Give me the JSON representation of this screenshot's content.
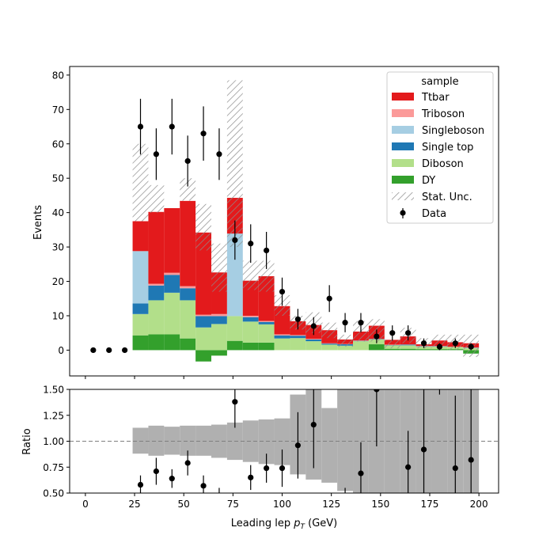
{
  "chart_data": [
    {
      "type": "bar",
      "stacked": true,
      "bin_width": 8,
      "ylabel": "Events",
      "xlim": [
        -8,
        210
      ],
      "ylim": [
        -7.5,
        82.5
      ],
      "yticks": [
        0,
        10,
        20,
        30,
        40,
        50,
        60,
        70,
        80
      ],
      "xticks": [
        0,
        25,
        50,
        75,
        100,
        125,
        150,
        175,
        200
      ],
      "x": [
        28,
        36,
        44,
        52,
        60,
        68,
        76,
        84,
        92,
        100,
        108,
        116,
        124,
        132,
        140,
        148,
        156,
        164,
        172,
        180,
        188,
        196
      ],
      "series": [
        {
          "name": "DY",
          "color": "#33a02c",
          "values": [
            4.3,
            4.6,
            4.6,
            3.4,
            -3.3,
            -1.6,
            2.7,
            2.2,
            2.2,
            0,
            0,
            0,
            0,
            0,
            0,
            1.7,
            0.4,
            0.4,
            0.3,
            0.3,
            0.3,
            -1.0
          ]
        },
        {
          "name": "Diboson",
          "color": "#b2df8a",
          "values": [
            6.2,
            9.9,
            12.1,
            11.1,
            6.6,
            7.6,
            7.2,
            6.1,
            5.3,
            3.4,
            3.5,
            2.6,
            1.6,
            1.3,
            2.6,
            1.4,
            1.0,
            1.0,
            0.7,
            0.7,
            0.6,
            0.6
          ]
        },
        {
          "name": "Single top",
          "color": "#1f78b4",
          "values": [
            3.1,
            4.3,
            5.2,
            3.5,
            3.3,
            2.3,
            0,
            1.3,
            0.7,
            0.9,
            0.7,
            0.5,
            0.3,
            0.4,
            0.1,
            0.1,
            0.1,
            0.2,
            0.1,
            0.1,
            0,
            0.1
          ]
        },
        {
          "name": "Singleboson",
          "color": "#a6cee3",
          "values": [
            15.2,
            0,
            0,
            0,
            0,
            0,
            24.0,
            0,
            0,
            0,
            0,
            0,
            0,
            0,
            0,
            0,
            0,
            0,
            0,
            0,
            0,
            0
          ]
        },
        {
          "name": "Triboson",
          "color": "#fb9a99",
          "values": [
            0,
            0.5,
            0.6,
            0.6,
            0.4,
            0.6,
            0,
            0.4,
            0.3,
            0.3,
            0.2,
            0.2,
            0.1,
            0.1,
            0.1,
            0.1,
            0.1,
            0.1,
            0.1,
            0.1,
            0.1,
            0.1
          ]
        },
        {
          "name": "Ttbar",
          "color": "#e31a1c",
          "values": [
            8.7,
            20.9,
            18.8,
            24.8,
            23.9,
            12.1,
            10.4,
            10.2,
            13.0,
            8.2,
            4.0,
            4.0,
            3.8,
            1.3,
            2.6,
            3.8,
            1.4,
            2.3,
            0.5,
            1.6,
            1.3,
            1.2
          ]
        }
      ],
      "stat_unc": {
        "name": "Stat. Unc.",
        "low": [
          37.5,
          40.0,
          48.0,
          43.5,
          29.0,
          17.0,
          30.0,
          17.5,
          17.0,
          10.0,
          6.0,
          5.0,
          3.5,
          1.0,
          2.5,
          2.5,
          0.5,
          2.0,
          0.5,
          1.0,
          0.0,
          -2.0
        ],
        "high": [
          60.0,
          48.0,
          48.0,
          50.0,
          42.5,
          31.0,
          78.5,
          26.0,
          26.0,
          16.0,
          10.0,
          11.0,
          8.0,
          4.5,
          8.5,
          9.0,
          3.0,
          6.5,
          3.5,
          4.5,
          4.5,
          4.5
        ]
      },
      "data": {
        "name": "Data",
        "x": [
          4,
          12,
          20,
          28,
          36,
          44,
          52,
          60,
          68,
          76,
          84,
          92,
          100,
          108,
          116,
          124,
          132,
          140,
          148,
          156,
          164,
          172,
          180,
          188,
          196
        ],
        "y": [
          0,
          0,
          0,
          65,
          57,
          65,
          55,
          63,
          57,
          32,
          31,
          29,
          17,
          9,
          7,
          15,
          8,
          8,
          4,
          5,
          5,
          2,
          1,
          2,
          1
        ],
        "err": [
          0,
          0,
          0,
          8.1,
          7.5,
          8.1,
          7.4,
          7.9,
          7.5,
          5.7,
          5.6,
          5.4,
          4.1,
          3.0,
          2.6,
          3.9,
          2.8,
          2.8,
          2.0,
          2.2,
          2.2,
          1.4,
          1.0,
          1.4,
          1.0
        ]
      },
      "legend": {
        "title": "sample",
        "placement": "top-right",
        "entries": [
          "Ttbar",
          "Triboson",
          "Singleboson",
          "Single top",
          "Diboson",
          "DY",
          "Stat. Unc.",
          "Data"
        ]
      }
    },
    {
      "type": "scatter",
      "xlabel_pre": "Leading lep ",
      "xlabel_var": "p",
      "xlabel_sub": "T",
      "xlabel_post": " (GeV)",
      "ylabel": "Ratio",
      "xlim": [
        -8,
        210
      ],
      "ylim": [
        0.5,
        1.5
      ],
      "yticks": [
        "0.50",
        "0.75",
        "1.00",
        "1.25",
        "1.50"
      ],
      "ytick_values": [
        0.5,
        0.75,
        1.0,
        1.25,
        1.5
      ],
      "xticks": [
        "0",
        "25",
        "50",
        "75",
        "100",
        "125",
        "150",
        "175",
        "200"
      ],
      "xtick_values": [
        0,
        25,
        50,
        75,
        100,
        125,
        150,
        175,
        200
      ],
      "reference_line": 1.0,
      "band": {
        "bin_edges": [
          24,
          32,
          40,
          48,
          56,
          64,
          72,
          80,
          88,
          96,
          104,
          112,
          120,
          128,
          136,
          144,
          152,
          160,
          168,
          176,
          184,
          192,
          200
        ],
        "low": [
          0.88,
          0.86,
          0.87,
          0.86,
          0.86,
          0.84,
          0.82,
          0.8,
          0.78,
          0.77,
          0.68,
          0.63,
          0.6,
          0.52,
          0.45,
          0.42,
          0.45,
          0.35,
          0.3,
          0.28,
          0.25,
          0.2
        ],
        "high": [
          1.13,
          1.15,
          1.14,
          1.15,
          1.15,
          1.16,
          1.18,
          1.2,
          1.21,
          1.22,
          1.45,
          1.5,
          1.32,
          1.65,
          1.8,
          1.85,
          1.9,
          2.1,
          2.2,
          2.3,
          2.4,
          2.6
        ]
      },
      "points": {
        "x": [
          28,
          36,
          44,
          52,
          60,
          76,
          84,
          92,
          100,
          108,
          116,
          140,
          148,
          164,
          172,
          188,
          196
        ],
        "y": [
          0.58,
          0.71,
          0.64,
          0.79,
          0.57,
          1.38,
          0.65,
          0.74,
          0.74,
          0.96,
          1.16,
          0.69,
          1.5,
          0.75,
          0.92,
          0.74,
          0.82
        ],
        "err": [
          0.09,
          0.13,
          0.09,
          0.12,
          0.1,
          0.25,
          0.12,
          0.14,
          0.18,
          0.32,
          0.42,
          0.3,
          0.55,
          0.35,
          0.6,
          0.7,
          0.85
        ]
      },
      "offscale_segments": {
        "x": [
          68,
          132,
          180
        ],
        "y_low": [
          0.48,
          0.48,
          1.45
        ],
        "y_high": [
          0.55,
          0.55,
          1.52
        ]
      }
    }
  ]
}
